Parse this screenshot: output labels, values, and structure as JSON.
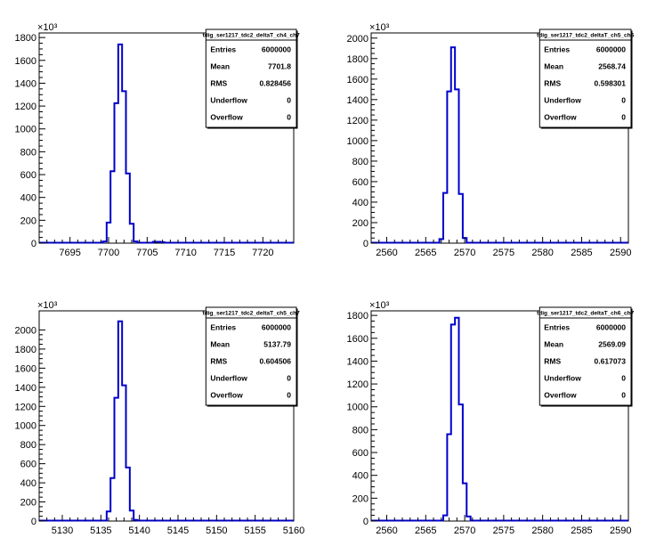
{
  "colors": {
    "hist": "#0000cc",
    "axis": "#000000",
    "background": "#ffffff"
  },
  "chart_data": [
    {
      "type": "histogram",
      "title": "tdig_ser1217_tdc2_deltaT_ch4_ch7",
      "stats": [
        {
          "label": "Entries",
          "value": "6000000"
        },
        {
          "label": "Mean",
          "value": "7701.8"
        },
        {
          "label": "RMS",
          "value": "0.828456"
        },
        {
          "label": "Underflow",
          "value": "0"
        },
        {
          "label": "Overflow",
          "value": "0"
        }
      ],
      "xlim": [
        7691,
        7724
      ],
      "ylim": [
        0,
        1840
      ],
      "x_ticks": [
        7695,
        7700,
        7705,
        7710,
        7715,
        7720
      ],
      "x_tick_labels": [
        "7695",
        "7700",
        "7705",
        "7710",
        "7715",
        "7720"
      ],
      "y_ticks": [
        0,
        200,
        400,
        600,
        800,
        1000,
        1200,
        1400,
        1600,
        1800
      ],
      "y_tick_labels": [
        "0",
        "200",
        "400",
        "600",
        "800",
        "1000",
        "1200",
        "1400",
        "1600",
        "1800"
      ],
      "y_multiplier": "×10³",
      "bin_width": 0.5,
      "bins": [
        {
          "x": 7699.5,
          "y": 15
        },
        {
          "x": 7700.0,
          "y": 180
        },
        {
          "x": 7700.5,
          "y": 630
        },
        {
          "x": 7701.0,
          "y": 1225
        },
        {
          "x": 7701.5,
          "y": 1740
        },
        {
          "x": 7702.0,
          "y": 1330
        },
        {
          "x": 7702.5,
          "y": 610
        },
        {
          "x": 7703.0,
          "y": 170
        },
        {
          "x": 7703.5,
          "y": 15
        },
        {
          "x": 7706.0,
          "y": 12
        },
        {
          "x": 7706.5,
          "y": 12
        },
        {
          "x": 7707.0,
          "y": 8
        }
      ]
    },
    {
      "type": "histogram",
      "title": "tdig_ser1217_tdc2_deltaT_ch5_ch6",
      "stats": [
        {
          "label": "Entries",
          "value": "6000000"
        },
        {
          "label": "Mean",
          "value": "2568.74"
        },
        {
          "label": "RMS",
          "value": "0.598301"
        },
        {
          "label": "Underflow",
          "value": "0"
        },
        {
          "label": "Overflow",
          "value": "0"
        }
      ],
      "xlim": [
        2558,
        2591
      ],
      "ylim": [
        0,
        2050
      ],
      "x_ticks": [
        2560,
        2565,
        2570,
        2575,
        2580,
        2585,
        2590
      ],
      "x_tick_labels": [
        "2560",
        "2565",
        "2570",
        "2575",
        "2580",
        "2585",
        "2590"
      ],
      "y_ticks": [
        0,
        200,
        400,
        600,
        800,
        1000,
        1200,
        1400,
        1600,
        1800,
        2000
      ],
      "y_tick_labels": [
        "0",
        "200",
        "400",
        "600",
        "800",
        "1000",
        "1200",
        "1400",
        "1600",
        "1800",
        "2000"
      ],
      "y_multiplier": "×10³",
      "bin_width": 0.5,
      "bins": [
        {
          "x": 2567.0,
          "y": 40
        },
        {
          "x": 2567.5,
          "y": 490
        },
        {
          "x": 2568.0,
          "y": 1480
        },
        {
          "x": 2568.5,
          "y": 1910
        },
        {
          "x": 2569.0,
          "y": 1500
        },
        {
          "x": 2569.5,
          "y": 480
        },
        {
          "x": 2570.0,
          "y": 50
        }
      ]
    },
    {
      "type": "histogram",
      "title": "tdig_ser1217_tdc2_deltaT_ch5_ch7",
      "stats": [
        {
          "label": "Entries",
          "value": "6000000"
        },
        {
          "label": "Mean",
          "value": "5137.79"
        },
        {
          "label": "RMS",
          "value": "0.604506"
        },
        {
          "label": "Underflow",
          "value": "0"
        },
        {
          "label": "Overflow",
          "value": "0"
        }
      ],
      "xlim": [
        5127,
        5160
      ],
      "ylim": [
        0,
        2200
      ],
      "x_ticks": [
        5130,
        5135,
        5140,
        5145,
        5150,
        5155,
        5160
      ],
      "x_tick_labels": [
        "5130",
        "5135",
        "5140",
        "5145",
        "5150",
        "5155",
        "5160"
      ],
      "y_ticks": [
        0,
        200,
        400,
        600,
        800,
        1000,
        1200,
        1400,
        1600,
        1800,
        2000
      ],
      "y_tick_labels": [
        "0",
        "200",
        "400",
        "600",
        "800",
        "1000",
        "1200",
        "1400",
        "1600",
        "1800",
        "2000"
      ],
      "y_multiplier": "×10³",
      "bin_width": 0.5,
      "bins": [
        {
          "x": 5136.0,
          "y": 100
        },
        {
          "x": 5136.5,
          "y": 450
        },
        {
          "x": 5137.0,
          "y": 1290
        },
        {
          "x": 5137.5,
          "y": 2090
        },
        {
          "x": 5138.0,
          "y": 1420
        },
        {
          "x": 5138.5,
          "y": 560
        },
        {
          "x": 5139.0,
          "y": 110
        },
        {
          "x": 5139.5,
          "y": 12
        }
      ]
    },
    {
      "type": "histogram",
      "title": "tdig_ser1217_tdc2_deltaT_ch6_ch7",
      "stats": [
        {
          "label": "Entries",
          "value": "6000000"
        },
        {
          "label": "Mean",
          "value": "2569.09"
        },
        {
          "label": "RMS",
          "value": "0.617073"
        },
        {
          "label": "Underflow",
          "value": "0"
        },
        {
          "label": "Overflow",
          "value": "0"
        }
      ],
      "xlim": [
        2558,
        2591
      ],
      "ylim": [
        0,
        1840
      ],
      "x_ticks": [
        2560,
        2565,
        2570,
        2575,
        2580,
        2585,
        2590
      ],
      "x_tick_labels": [
        "2560",
        "2565",
        "2570",
        "2575",
        "2580",
        "2585",
        "2590"
      ],
      "y_ticks": [
        0,
        200,
        400,
        600,
        800,
        1000,
        1200,
        1400,
        1600,
        1800
      ],
      "y_tick_labels": [
        "0",
        "200",
        "400",
        "600",
        "800",
        "1000",
        "1200",
        "1400",
        "1600",
        "1800"
      ],
      "y_multiplier": "×10³",
      "bin_width": 0.5,
      "bins": [
        {
          "x": 2567.5,
          "y": 50
        },
        {
          "x": 2568.0,
          "y": 760
        },
        {
          "x": 2568.5,
          "y": 1720
        },
        {
          "x": 2569.0,
          "y": 1780
        },
        {
          "x": 2569.5,
          "y": 1020
        },
        {
          "x": 2570.0,
          "y": 330
        },
        {
          "x": 2570.5,
          "y": 40
        }
      ]
    }
  ]
}
